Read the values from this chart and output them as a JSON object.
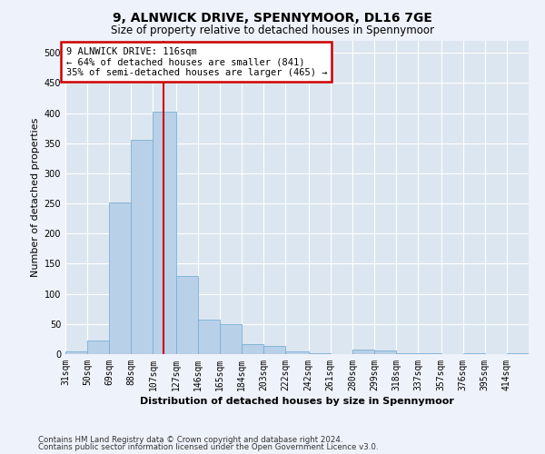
{
  "title1": "9, ALNWICK DRIVE, SPENNYMOOR, DL16 7GE",
  "title2": "Size of property relative to detached houses in Spennymoor",
  "xlabel": "Distribution of detached houses by size in Spennymoor",
  "ylabel": "Number of detached properties",
  "footer1": "Contains HM Land Registry data © Crown copyright and database right 2024.",
  "footer2": "Contains public sector information licensed under the Open Government Licence v3.0.",
  "annotation_line1": "9 ALNWICK DRIVE: 116sqm",
  "annotation_line2": "← 64% of detached houses are smaller (841)",
  "annotation_line3": "35% of semi-detached houses are larger (465) →",
  "bar_edges": [
    31,
    50,
    69,
    88,
    107,
    127,
    146,
    165,
    184,
    203,
    222,
    242,
    261,
    280,
    299,
    318,
    337,
    357,
    376,
    395,
    414
  ],
  "bar_heights": [
    5,
    23,
    252,
    355,
    402,
    130,
    58,
    49,
    17,
    13,
    5,
    2,
    0,
    7,
    6,
    2,
    1,
    0,
    1,
    0,
    2
  ],
  "bar_color": "#b8d0e8",
  "bar_edge_color": "#7aafd4",
  "vline_color": "#cc0000",
  "vline_x": 116,
  "annotation_box_color": "#cc0000",
  "ylim": [
    0,
    520
  ],
  "yticks": [
    0,
    50,
    100,
    150,
    200,
    250,
    300,
    350,
    400,
    450,
    500
  ],
  "background_color": "#eef2fa",
  "plot_bg_color": "#dce6f0",
  "grid_color": "#ffffff",
  "title1_fontsize": 10,
  "title2_fontsize": 8.5,
  "xlabel_fontsize": 8,
  "ylabel_fontsize": 8,
  "tick_fontsize": 7,
  "footer_fontsize": 6.2,
  "annot_fontsize": 7.5
}
